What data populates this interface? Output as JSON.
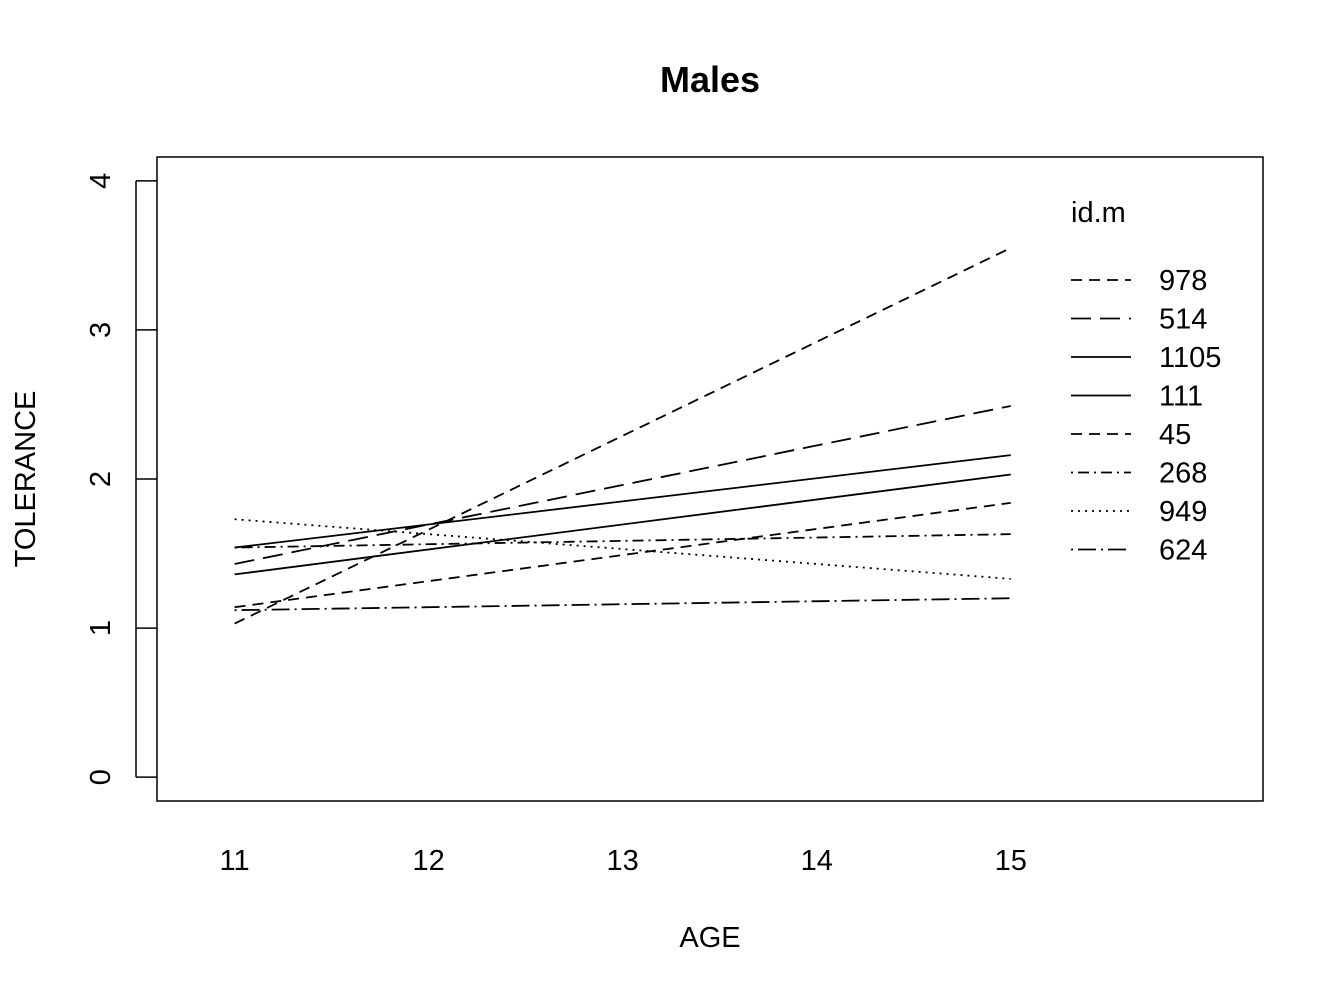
{
  "chart_data": {
    "type": "line",
    "title": "Males",
    "xlabel": "AGE",
    "ylabel": "TOLERANCE",
    "x_ticks": [
      "11",
      "12",
      "13",
      "14",
      "15"
    ],
    "y_ticks": [
      "0",
      "1",
      "2",
      "3",
      "4"
    ],
    "xlim": [
      10.6,
      16.3
    ],
    "ylim": [
      -0.16,
      4.16
    ],
    "grid": false,
    "legend": {
      "title": "id.m",
      "placement": "top-right"
    },
    "series": [
      {
        "name": "978",
        "dash": "short-dash",
        "x": [
          11,
          15
        ],
        "y": [
          1.03,
          3.55
        ]
      },
      {
        "name": "514",
        "dash": "long-dash",
        "x": [
          11,
          15
        ],
        "y": [
          1.43,
          2.49
        ]
      },
      {
        "name": "1105",
        "dash": "solid",
        "x": [
          11,
          15
        ],
        "y": [
          1.54,
          2.16
        ]
      },
      {
        "name": "111",
        "dash": "solid",
        "x": [
          11,
          15
        ],
        "y": [
          1.36,
          2.03
        ]
      },
      {
        "name": "45",
        "dash": "short-dash",
        "x": [
          11,
          15
        ],
        "y": [
          1.14,
          1.84
        ]
      },
      {
        "name": "268",
        "dash": "dot-dash",
        "x": [
          11,
          15
        ],
        "y": [
          1.54,
          1.63
        ]
      },
      {
        "name": "949",
        "dash": "dotted",
        "x": [
          11,
          15
        ],
        "y": [
          1.73,
          1.33
        ]
      },
      {
        "name": "624",
        "dash": "long-dot-dash",
        "x": [
          11,
          15
        ],
        "y": [
          1.12,
          1.2
        ]
      }
    ]
  }
}
